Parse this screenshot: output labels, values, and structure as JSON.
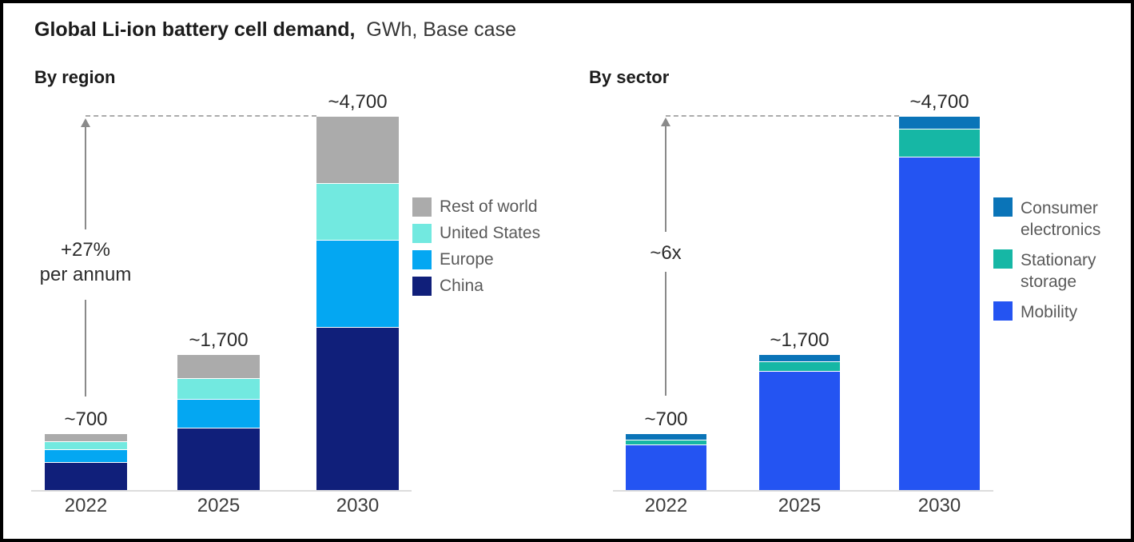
{
  "title": {
    "bold": "Global Li-ion battery cell demand,",
    "regular": "GWh, Base case"
  },
  "colors": {
    "frame_border": "#000000",
    "background": "#ffffff",
    "axis_line": "#dcdcdc",
    "arrow": "#8a8a8a",
    "dashed_line": "#ababab",
    "text_primary": "#1c1c1c",
    "legend_text": "#5a5a5a"
  },
  "chart_data": [
    {
      "id": "by-region",
      "type": "bar",
      "subtype": "stacked",
      "title": "By region",
      "unit": "GWh",
      "categories": [
        "2022",
        "2025",
        "2030"
      ],
      "totals": [
        700,
        1700,
        4700
      ],
      "totals_labels": [
        "~700",
        "~1,700",
        "~4,700"
      ],
      "ylim": [
        0,
        4700
      ],
      "gridlines": false,
      "annotation_lines": [
        "+27%",
        "per annum"
      ],
      "series": [
        {
          "name": "China",
          "color": "#101f7a",
          "values": [
            350,
            780,
            2050
          ]
        },
        {
          "name": "Europe",
          "color": "#04a7f2",
          "values": [
            160,
            370,
            1100
          ]
        },
        {
          "name": "United States",
          "color": "#72e9e0",
          "values": [
            100,
            260,
            710
          ]
        },
        {
          "name": "Rest of world",
          "color": "#ababab",
          "values": [
            90,
            290,
            840
          ]
        }
      ],
      "legend_position": "right",
      "legend": [
        {
          "series": "Rest of world",
          "lines": [
            "Rest of world"
          ]
        },
        {
          "series": "United States",
          "lines": [
            "United States"
          ]
        },
        {
          "series": "Europe",
          "lines": [
            "Europe"
          ]
        },
        {
          "series": "China",
          "lines": [
            "China"
          ]
        }
      ]
    },
    {
      "id": "by-sector",
      "type": "bar",
      "subtype": "stacked",
      "title": "By sector",
      "unit": "GWh",
      "categories": [
        "2022",
        "2025",
        "2030"
      ],
      "totals": [
        700,
        1700,
        4700
      ],
      "totals_labels": [
        "~700",
        "~1,700",
        "~4,700"
      ],
      "ylim": [
        0,
        4700
      ],
      "gridlines": false,
      "annotation_lines": [
        "~6x"
      ],
      "series": [
        {
          "name": "Mobility",
          "color": "#2454f2",
          "values": [
            570,
            1500,
            4200
          ]
        },
        {
          "name": "Stationary storage",
          "color": "#16b7a5",
          "values": [
            60,
            120,
            350
          ]
        },
        {
          "name": "Consumer electronics",
          "color": "#0a74b8",
          "values": [
            70,
            80,
            150
          ]
        }
      ],
      "legend_position": "right",
      "legend": [
        {
          "series": "Consumer electronics",
          "lines": [
            "Consumer",
            "electronics"
          ]
        },
        {
          "series": "Stationary storage",
          "lines": [
            "Stationary",
            "storage"
          ]
        },
        {
          "series": "Mobility",
          "lines": [
            "Mobility"
          ]
        }
      ]
    }
  ]
}
